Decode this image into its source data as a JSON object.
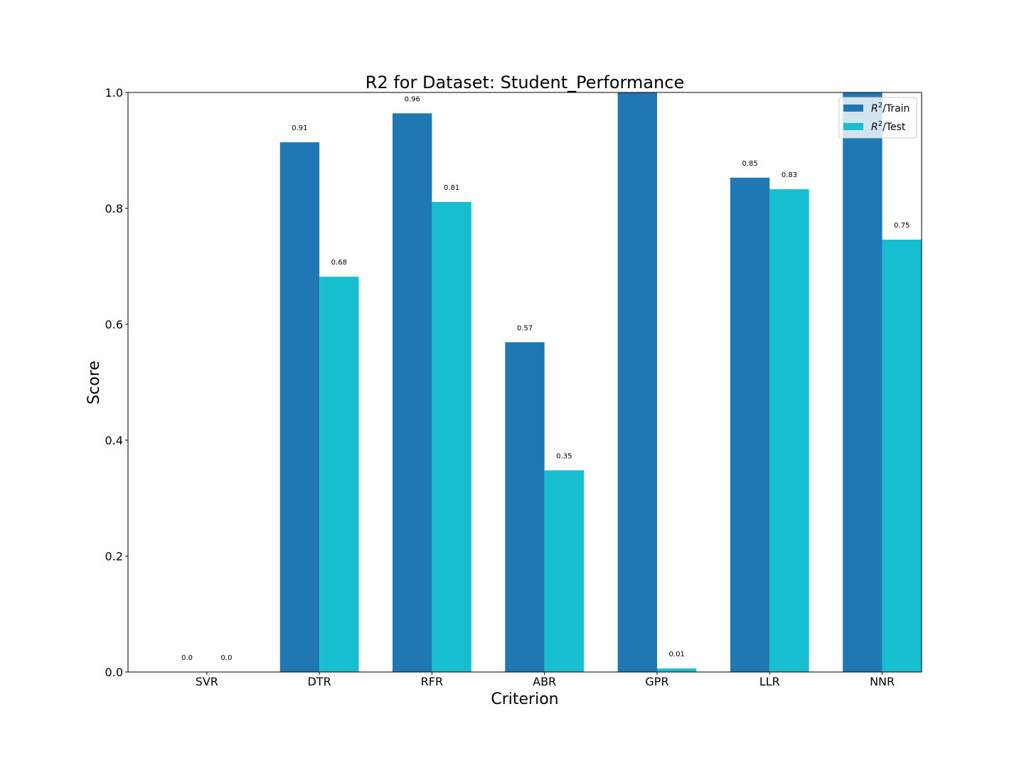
{
  "chart_data": {
    "type": "bar",
    "title": "R2 for Dataset: Student_Performance",
    "xlabel": "Criterion",
    "ylabel": "Score",
    "categories": [
      "SVR",
      "DTR",
      "RFR",
      "ABR",
      "GPR",
      "LLR",
      "NNR"
    ],
    "ylim": [
      0,
      1.0
    ],
    "yticks": [
      "0.0",
      "0.2",
      "0.4",
      "0.6",
      "0.8",
      "1.0"
    ],
    "series": [
      {
        "name": "R²/Train",
        "name_base": "R",
        "name_sup": "2",
        "name_suffix": "/Train",
        "color": "#1f77b4",
        "values": [
          0.0,
          0.914,
          0.964,
          0.569,
          1.0,
          0.853,
          1.0
        ],
        "labels": [
          "0.0",
          "0.91",
          "0.96",
          "0.57",
          "",
          "0.85",
          ""
        ]
      },
      {
        "name": "R²/Test",
        "name_base": "R",
        "name_sup": "2",
        "name_suffix": "/Test",
        "color": "#17becf",
        "values": [
          0.0,
          0.682,
          0.811,
          0.348,
          0.006,
          0.833,
          0.746
        ],
        "labels": [
          "0.0",
          "0.68",
          "0.81",
          "0.35",
          "0.01",
          "0.83",
          "0.75"
        ]
      }
    ],
    "grid": false,
    "legend_position": "top-right"
  }
}
